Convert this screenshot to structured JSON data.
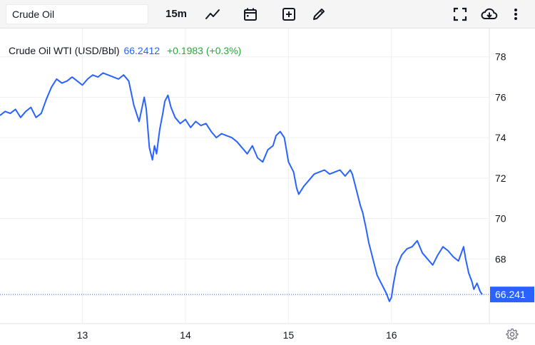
{
  "toolbar": {
    "symbol_value": "Crude Oil",
    "interval": "15m",
    "icons": [
      "line-chart-icon",
      "calendar-icon",
      "add-box-icon",
      "pencil-icon",
      "fullscreen-icon",
      "cloud-download-icon",
      "more-vert-icon",
      "gear-icon"
    ]
  },
  "legend": {
    "name": "Crude Oil WTI (USD/Bbl)",
    "price": "66.2412",
    "change": "+0.1983 (+0.3%)"
  },
  "colors": {
    "line": "#2962ff",
    "last_price_bg": "#2962ff",
    "positive": "#22ab36",
    "grid": "#eef0f3"
  },
  "chart_data": {
    "type": "line",
    "title": "Crude Oil WTI (USD/Bbl)",
    "x_ticks": [
      "13",
      "14",
      "15",
      "16"
    ],
    "x_tick_positions": [
      13,
      14,
      15,
      16
    ],
    "xlim": [
      12.2,
      16.95
    ],
    "y_ticks": [
      68,
      70,
      72,
      74,
      76,
      78
    ],
    "ylim": [
      64.8,
      79.4
    ],
    "grid": true,
    "last_value_label": "66.241",
    "last_value": 66.2412,
    "series": [
      {
        "x": [
          12.2,
          12.25,
          12.3,
          12.35,
          12.4,
          12.45,
          12.5,
          12.55,
          12.6,
          12.65,
          12.7,
          12.75,
          12.8,
          12.85,
          12.9,
          12.95,
          13.0,
          13.05,
          13.1,
          13.15,
          13.2,
          13.25,
          13.3,
          13.35,
          13.4,
          13.45,
          13.5,
          13.55,
          13.6,
          13.62,
          13.65,
          13.68,
          13.7,
          13.72,
          13.75,
          13.78,
          13.8,
          13.83,
          13.86,
          13.9,
          13.95,
          14.0,
          14.05,
          14.1,
          14.15,
          14.2,
          14.25,
          14.3,
          14.35,
          14.4,
          14.45,
          14.5,
          14.55,
          14.6,
          14.65,
          14.7,
          14.75,
          14.8,
          14.85,
          14.88,
          14.92,
          14.96,
          15.0,
          15.05,
          15.08,
          15.1,
          15.15,
          15.2,
          15.25,
          15.3,
          15.35,
          15.4,
          15.45,
          15.5,
          15.55,
          15.6,
          15.62,
          15.65,
          15.68,
          15.7,
          15.72,
          15.75,
          15.78,
          15.8,
          15.83,
          15.86,
          15.9,
          15.95,
          15.98,
          16.0,
          16.02,
          16.05,
          16.1,
          16.15,
          16.2,
          16.25,
          16.3,
          16.35,
          16.4,
          16.45,
          16.5,
          16.55,
          16.6,
          16.65,
          16.7,
          16.72,
          16.75,
          16.78,
          16.8,
          16.83,
          16.86,
          16.88
        ],
        "y": [
          75.1,
          75.3,
          75.2,
          75.4,
          75.0,
          75.3,
          75.5,
          75.0,
          75.2,
          75.9,
          76.5,
          76.9,
          76.7,
          76.8,
          77.0,
          76.8,
          76.6,
          76.9,
          77.1,
          77.0,
          77.2,
          77.1,
          77.0,
          76.9,
          77.1,
          76.8,
          75.6,
          74.8,
          76.0,
          75.4,
          73.5,
          72.9,
          73.6,
          73.2,
          74.4,
          75.2,
          75.8,
          76.1,
          75.5,
          75.0,
          74.7,
          74.9,
          74.5,
          74.8,
          74.6,
          74.7,
          74.3,
          74.0,
          74.2,
          74.1,
          74.0,
          73.8,
          73.5,
          73.2,
          73.6,
          73.0,
          72.8,
          73.4,
          73.6,
          74.1,
          74.3,
          74.0,
          72.8,
          72.3,
          71.5,
          71.2,
          71.6,
          71.9,
          72.2,
          72.3,
          72.4,
          72.2,
          72.3,
          72.4,
          72.1,
          72.4,
          72.2,
          71.6,
          71.0,
          70.6,
          70.3,
          69.6,
          68.8,
          68.4,
          67.8,
          67.2,
          66.8,
          66.3,
          65.9,
          66.1,
          66.8,
          67.6,
          68.2,
          68.5,
          68.6,
          68.9,
          68.3,
          68.0,
          67.7,
          68.2,
          68.6,
          68.4,
          68.1,
          67.9,
          68.6,
          68.0,
          67.3,
          66.9,
          66.5,
          66.8,
          66.4,
          66.24
        ]
      }
    ]
  }
}
